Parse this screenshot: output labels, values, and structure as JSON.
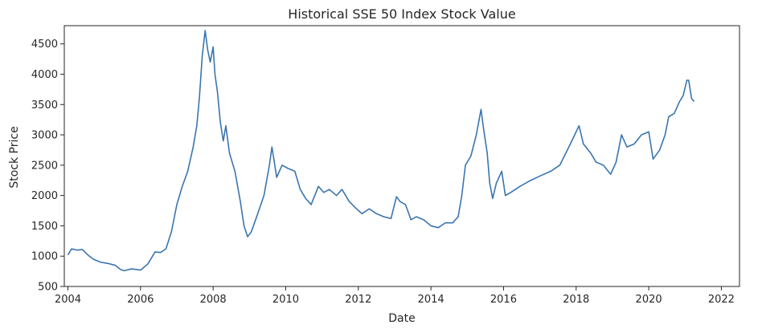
{
  "chart_data": {
    "type": "line",
    "title": "Historical SSE 50 Index Stock Value",
    "xlabel": "Date",
    "ylabel": "Stock Price",
    "xlim": [
      2003.9,
      2022.5
    ],
    "ylim": [
      500,
      4800
    ],
    "x_ticks": [
      2004,
      2006,
      2008,
      2010,
      2012,
      2014,
      2016,
      2018,
      2020,
      2022
    ],
    "y_ticks": [
      500,
      1000,
      1500,
      2000,
      2500,
      3000,
      3500,
      4000,
      4500
    ],
    "grid": false,
    "line_color": "#3a75b0",
    "series": [
      {
        "points": [
          [
            2004.0,
            1020
          ],
          [
            2004.1,
            1120
          ],
          [
            2004.25,
            1100
          ],
          [
            2004.4,
            1110
          ],
          [
            2004.55,
            1020
          ],
          [
            2004.7,
            950
          ],
          [
            2004.9,
            900
          ],
          [
            2005.1,
            880
          ],
          [
            2005.3,
            850
          ],
          [
            2005.45,
            780
          ],
          [
            2005.55,
            760
          ],
          [
            2005.75,
            790
          ],
          [
            2006.0,
            770
          ],
          [
            2006.2,
            870
          ],
          [
            2006.4,
            1070
          ],
          [
            2006.55,
            1060
          ],
          [
            2006.7,
            1120
          ],
          [
            2006.85,
            1400
          ],
          [
            2007.0,
            1850
          ],
          [
            2007.15,
            2150
          ],
          [
            2007.3,
            2400
          ],
          [
            2007.45,
            2800
          ],
          [
            2007.55,
            3150
          ],
          [
            2007.62,
            3600
          ],
          [
            2007.7,
            4300
          ],
          [
            2007.78,
            4720
          ],
          [
            2007.85,
            4400
          ],
          [
            2007.92,
            4200
          ],
          [
            2008.0,
            4450
          ],
          [
            2008.05,
            4000
          ],
          [
            2008.12,
            3700
          ],
          [
            2008.2,
            3200
          ],
          [
            2008.28,
            2900
          ],
          [
            2008.35,
            3150
          ],
          [
            2008.45,
            2700
          ],
          [
            2008.6,
            2400
          ],
          [
            2008.75,
            1900
          ],
          [
            2008.85,
            1500
          ],
          [
            2008.95,
            1320
          ],
          [
            2009.05,
            1400
          ],
          [
            2009.2,
            1650
          ],
          [
            2009.4,
            2000
          ],
          [
            2009.55,
            2500
          ],
          [
            2009.62,
            2800
          ],
          [
            2009.75,
            2300
          ],
          [
            2009.9,
            2500
          ],
          [
            2010.05,
            2450
          ],
          [
            2010.25,
            2400
          ],
          [
            2010.4,
            2100
          ],
          [
            2010.55,
            1950
          ],
          [
            2010.7,
            1850
          ],
          [
            2010.9,
            2150
          ],
          [
            2011.05,
            2050
          ],
          [
            2011.2,
            2100
          ],
          [
            2011.4,
            2000
          ],
          [
            2011.55,
            2100
          ],
          [
            2011.75,
            1900
          ],
          [
            2011.95,
            1780
          ],
          [
            2012.1,
            1700
          ],
          [
            2012.3,
            1780
          ],
          [
            2012.5,
            1700
          ],
          [
            2012.7,
            1650
          ],
          [
            2012.9,
            1620
          ],
          [
            2013.05,
            1980
          ],
          [
            2013.15,
            1900
          ],
          [
            2013.3,
            1850
          ],
          [
            2013.45,
            1600
          ],
          [
            2013.6,
            1650
          ],
          [
            2013.8,
            1600
          ],
          [
            2014.0,
            1500
          ],
          [
            2014.2,
            1470
          ],
          [
            2014.4,
            1550
          ],
          [
            2014.6,
            1550
          ],
          [
            2014.75,
            1650
          ],
          [
            2014.85,
            2000
          ],
          [
            2014.95,
            2500
          ],
          [
            2015.1,
            2650
          ],
          [
            2015.25,
            3000
          ],
          [
            2015.38,
            3420
          ],
          [
            2015.45,
            3100
          ],
          [
            2015.55,
            2700
          ],
          [
            2015.62,
            2200
          ],
          [
            2015.7,
            1950
          ],
          [
            2015.8,
            2200
          ],
          [
            2015.95,
            2400
          ],
          [
            2016.05,
            2000
          ],
          [
            2016.2,
            2050
          ],
          [
            2016.45,
            2150
          ],
          [
            2016.75,
            2250
          ],
          [
            2017.0,
            2320
          ],
          [
            2017.3,
            2400
          ],
          [
            2017.55,
            2500
          ],
          [
            2017.8,
            2800
          ],
          [
            2018.0,
            3050
          ],
          [
            2018.08,
            3150
          ],
          [
            2018.2,
            2850
          ],
          [
            2018.4,
            2700
          ],
          [
            2018.55,
            2550
          ],
          [
            2018.75,
            2500
          ],
          [
            2018.95,
            2350
          ],
          [
            2019.1,
            2550
          ],
          [
            2019.25,
            3000
          ],
          [
            2019.4,
            2800
          ],
          [
            2019.6,
            2850
          ],
          [
            2019.8,
            3000
          ],
          [
            2020.0,
            3050
          ],
          [
            2020.12,
            2600
          ],
          [
            2020.3,
            2750
          ],
          [
            2020.45,
            3000
          ],
          [
            2020.55,
            3300
          ],
          [
            2020.7,
            3350
          ],
          [
            2020.85,
            3550
          ],
          [
            2020.95,
            3650
          ],
          [
            2021.05,
            3900
          ],
          [
            2021.1,
            3900
          ],
          [
            2021.18,
            3600
          ],
          [
            2021.25,
            3550
          ]
        ]
      }
    ]
  }
}
